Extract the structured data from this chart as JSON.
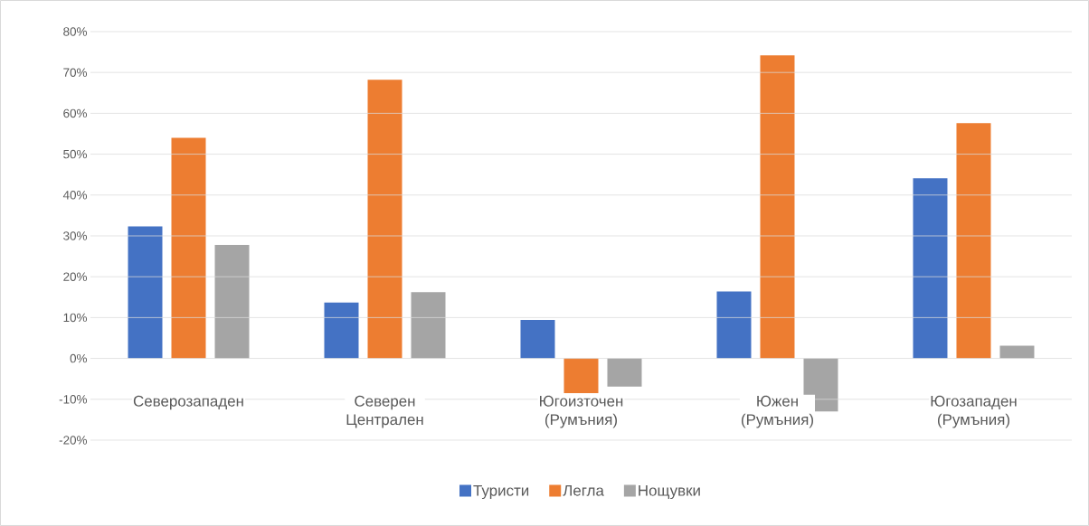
{
  "chart_data": {
    "type": "bar",
    "categories": [
      "Северозападен",
      "Северен Централен",
      "Югоизточен (Румъния)",
      "Южен (Румъния)",
      "Югозападен (Румъния)"
    ],
    "series": [
      {
        "name": "Туристи",
        "color": "#4472c4",
        "values": [
          32.3,
          13.7,
          9.4,
          16.4,
          44.1
        ]
      },
      {
        "name": "Легла",
        "color": "#ed7d31",
        "values": [
          54.0,
          68.2,
          -8.5,
          74.2,
          57.6
        ]
      },
      {
        "name": "Нощувки",
        "color": "#a5a5a5",
        "values": [
          27.8,
          16.2,
          -6.9,
          -13.0,
          3.1
        ]
      }
    ],
    "ylim": [
      -20,
      80
    ],
    "yticks": [
      {
        "value": -20,
        "label": "-20%"
      },
      {
        "value": -10,
        "label": "-10%"
      },
      {
        "value": 0,
        "label": "0%"
      },
      {
        "value": 10,
        "label": "10%"
      },
      {
        "value": 20,
        "label": "20%"
      },
      {
        "value": 30,
        "label": "30%"
      },
      {
        "value": 40,
        "label": "40%"
      },
      {
        "value": 50,
        "label": "50%"
      },
      {
        "value": 60,
        "label": "60%"
      },
      {
        "value": 70,
        "label": "70%"
      },
      {
        "value": 80,
        "label": "80%"
      }
    ],
    "grid": "y",
    "legend": "bottom"
  }
}
